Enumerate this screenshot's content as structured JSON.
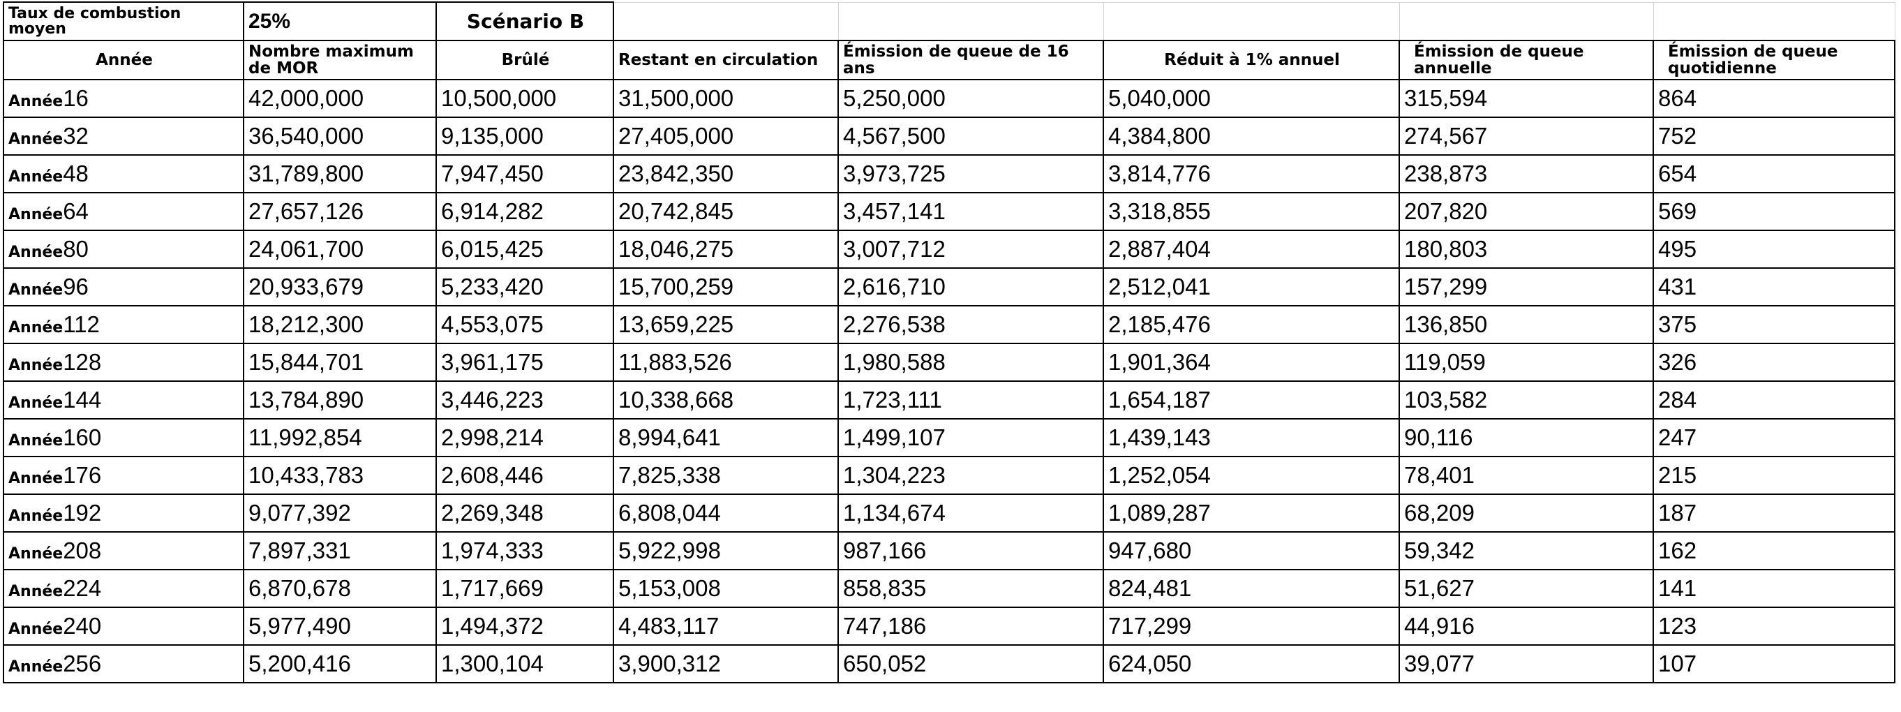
{
  "meta": {
    "burn_rate_label": "Taux de combustion moyen",
    "burn_rate_value": "25%",
    "scenario": "Scénario B"
  },
  "headers": [
    "Année",
    "Nombre maximum de MOR",
    "Brûlé",
    "Restant en circulation",
    "Émission de queue de 16 ans",
    "Réduit à 1% annuel",
    "Émission de queue annuelle",
    "Émission de queue quotidienne"
  ],
  "year_prefix": "Année",
  "rows": [
    {
      "year": "16",
      "max": "42,000,000",
      "burned": "10,500,000",
      "remaining": "31,500,000",
      "tail16": "5,250,000",
      "reduced": "5,040,000",
      "annual": "315,594",
      "daily": "864"
    },
    {
      "year": "32",
      "max": "36,540,000",
      "burned": "9,135,000",
      "remaining": "27,405,000",
      "tail16": "4,567,500",
      "reduced": "4,384,800",
      "annual": "274,567",
      "daily": "752"
    },
    {
      "year": "48",
      "max": "31,789,800",
      "burned": "7,947,450",
      "remaining": "23,842,350",
      "tail16": "3,973,725",
      "reduced": "3,814,776",
      "annual": "238,873",
      "daily": "654"
    },
    {
      "year": "64",
      "max": "27,657,126",
      "burned": "6,914,282",
      "remaining": "20,742,845",
      "tail16": "3,457,141",
      "reduced": "3,318,855",
      "annual": "207,820",
      "daily": "569"
    },
    {
      "year": "80",
      "max": "24,061,700",
      "burned": "6,015,425",
      "remaining": "18,046,275",
      "tail16": "3,007,712",
      "reduced": "2,887,404",
      "annual": "180,803",
      "daily": "495"
    },
    {
      "year": "96",
      "max": "20,933,679",
      "burned": "5,233,420",
      "remaining": "15,700,259",
      "tail16": "2,616,710",
      "reduced": "2,512,041",
      "annual": "157,299",
      "daily": "431"
    },
    {
      "year": "112",
      "max": "18,212,300",
      "burned": "4,553,075",
      "remaining": "13,659,225",
      "tail16": "2,276,538",
      "reduced": "2,185,476",
      "annual": "136,850",
      "daily": "375"
    },
    {
      "year": "128",
      "max": "15,844,701",
      "burned": "3,961,175",
      "remaining": "11,883,526",
      "tail16": "1,980,588",
      "reduced": "1,901,364",
      "annual": "119,059",
      "daily": "326"
    },
    {
      "year": "144",
      "max": "13,784,890",
      "burned": "3,446,223",
      "remaining": "10,338,668",
      "tail16": "1,723,111",
      "reduced": "1,654,187",
      "annual": "103,582",
      "daily": "284"
    },
    {
      "year": "160",
      "max": "11,992,854",
      "burned": "2,998,214",
      "remaining": "8,994,641",
      "tail16": "1,499,107",
      "reduced": "1,439,143",
      "annual": "90,116",
      "daily": "247"
    },
    {
      "year": "176",
      "max": "10,433,783",
      "burned": "2,608,446",
      "remaining": "7,825,338",
      "tail16": "1,304,223",
      "reduced": "1,252,054",
      "annual": "78,401",
      "daily": "215"
    },
    {
      "year": "192",
      "max": "9,077,392",
      "burned": "2,269,348",
      "remaining": "6,808,044",
      "tail16": "1,134,674",
      "reduced": "1,089,287",
      "annual": "68,209",
      "daily": "187"
    },
    {
      "year": "208",
      "max": "7,897,331",
      "burned": "1,974,333",
      "remaining": "5,922,998",
      "tail16": "987,166",
      "reduced": "947,680",
      "annual": "59,342",
      "daily": "162"
    },
    {
      "year": "224",
      "max": "6,870,678",
      "burned": "1,717,669",
      "remaining": "5,153,008",
      "tail16": "858,835",
      "reduced": "824,481",
      "annual": "51,627",
      "daily": "141"
    },
    {
      "year": "240",
      "max": "5,977,490",
      "burned": "1,494,372",
      "remaining": "4,483,117",
      "tail16": "747,186",
      "reduced": "717,299",
      "annual": "44,916",
      "daily": "123"
    },
    {
      "year": "256",
      "max": "5,200,416",
      "burned": "1,300,104",
      "remaining": "3,900,312",
      "tail16": "650,052",
      "reduced": "624,050",
      "annual": "39,077",
      "daily": "107"
    }
  ]
}
